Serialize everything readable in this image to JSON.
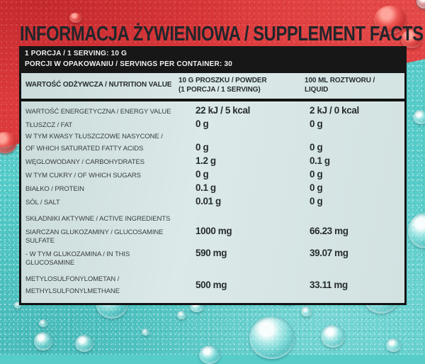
{
  "colors": {
    "background_red": "#dc3a3c",
    "background_teal": "#55ccc9",
    "panel_background": "#d6e4e3",
    "bar_black": "#171717",
    "text_dark": "#21262b"
  },
  "label": {
    "title": "INFORMACJA ŻYWIENIOWA / SUPPLEMENT FACTS",
    "serving_line": "1 PORCJA / 1 SERVING: 10 G",
    "servings_per_container_line": "PORCJI W OPAKOWANIU / SERVINGS PER CONTAINER: 30"
  },
  "table": {
    "header": {
      "nutrition": "WARTOŚĆ ODŻYWCZA / NUTRITION VALUE",
      "powder_line1": "10 G PROSZKU / POWDER",
      "powder_line2": "(1 PORCJA / 1 SERVING)",
      "liquid_line1": "100 ML ROZTWORU /",
      "liquid_line2": "LIQUID"
    },
    "rows": [
      {
        "label": [
          "WARTOŚĆ ENERGETYCZNA / ENERGY VALUE"
        ],
        "powder": "22 kJ / 5 kcal",
        "liquid": "2 kJ / 0 kcal"
      },
      {
        "label": [
          "TŁUSZCZ / FAT"
        ],
        "powder": "0 g",
        "liquid": "0 g"
      },
      {
        "label": [
          "W TYM KWASY TŁUSZCZOWE NASYCONE /",
          "OF WHICH SATURATED FATTY ACIDS"
        ],
        "powder": "0 g",
        "liquid": "0 g",
        "valign": "end"
      },
      {
        "label": [
          "WĘGLOWODANY / CARBOHYDRATES"
        ],
        "powder": "1.2 g",
        "liquid": "0.1 g"
      },
      {
        "label": [
          "W TYM CUKRY / OF WHICH SUGARS"
        ],
        "powder": "0 g",
        "liquid": "0 g"
      },
      {
        "label": [
          "BIAŁKO / PROTEIN"
        ],
        "powder": "0.1 g",
        "liquid": "0 g"
      },
      {
        "label": [
          "SÓL / SALT"
        ],
        "powder": "0.01 g",
        "liquid": "0 g"
      },
      {
        "label": [
          "SKŁADNIKI AKTYWNE / ACTIVE INGREDIENTS"
        ],
        "powder": "",
        "liquid": "",
        "section": true,
        "gap_before": true
      },
      {
        "label": [
          "SIARCZAN GLUKOZAMINY / GLUCOSAMINE SULFATE"
        ],
        "powder": "1000 mg",
        "liquid": "66.23 mg"
      },
      {
        "label": [
          "- W TYM GLUKOZAMINA / IN THIS GLUCOSAMINE"
        ],
        "powder": "590 mg",
        "liquid": "39.07 mg"
      },
      {
        "label": [
          "METYLOSULFONYLOMETAN /",
          "METHYLSULFONYLMETHANE"
        ],
        "powder": "500 mg",
        "liquid": "33.11 mg",
        "valign": "center",
        "gap_before": true
      }
    ]
  }
}
